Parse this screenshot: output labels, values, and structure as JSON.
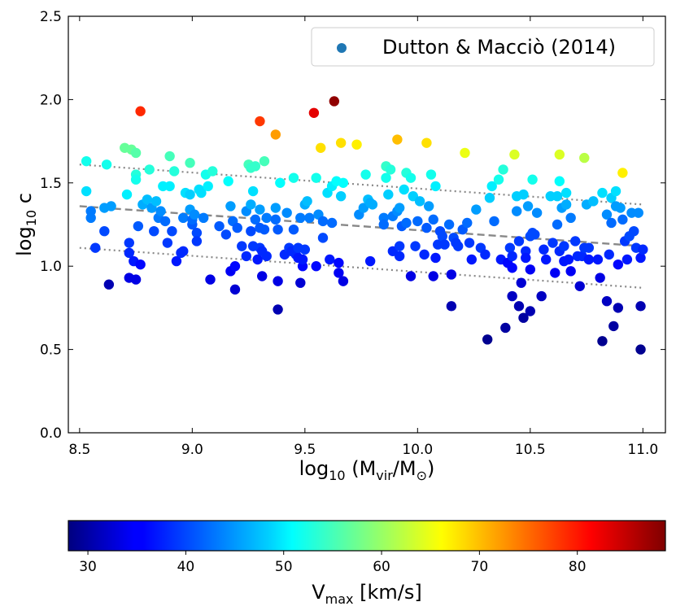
{
  "chart_data": {
    "type": "scatter",
    "xlabel": {
      "base": "log",
      "sub": "10",
      "main": " (M",
      "sub2": "vir",
      "mid": "/M",
      "sub3": "⊙",
      "end": ")"
    },
    "ylabel": {
      "base": "log",
      "sub": "10",
      "end": " c"
    },
    "xlim": [
      8.45,
      11.1
    ],
    "ylim": [
      0.0,
      2.5
    ],
    "xticks": [
      "8.5",
      "9.0",
      "9.5",
      "10.0",
      "10.5",
      "11.0"
    ],
    "yticks": [
      "0.0",
      "0.5",
      "1.0",
      "1.5",
      "2.0",
      "2.5"
    ],
    "legend": {
      "label": "Dutton & Macciò (2014)",
      "position": "top-right",
      "marker_color": "#1f77b4"
    },
    "colorbar": {
      "label_main": "V",
      "label_sub": "max",
      "label_end": " [km/s]",
      "range": [
        28,
        89
      ],
      "ticks": [
        "30",
        "40",
        "50",
        "60",
        "70",
        "80"
      ],
      "colormap": "jet"
    },
    "lines": [
      {
        "name": "",
        "style": "dashed",
        "x": [
          8.5,
          11.0
        ],
        "y": [
          1.36,
          1.12
        ]
      },
      {
        "name": "",
        "style": "dotted",
        "x": [
          8.5,
          11.0
        ],
        "y": [
          1.61,
          1.37
        ]
      },
      {
        "name": "",
        "style": "dotted",
        "x": [
          8.5,
          11.0
        ],
        "y": [
          1.11,
          0.87
        ]
      }
    ],
    "points": [
      [
        8.53,
        1.63,
        52
      ],
      [
        8.53,
        1.45,
        49
      ],
      [
        8.55,
        1.33,
        43
      ],
      [
        8.55,
        1.29,
        43
      ],
      [
        8.57,
        1.11,
        39
      ],
      [
        8.61,
        1.35,
        45
      ],
      [
        8.61,
        1.21,
        40
      ],
      [
        8.62,
        1.61,
        52
      ],
      [
        8.63,
        0.89,
        31
      ],
      [
        8.64,
        1.36,
        45
      ],
      [
        8.7,
        1.71,
        57
      ],
      [
        8.71,
        1.43,
        50
      ],
      [
        8.72,
        1.14,
        39
      ],
      [
        8.72,
        1.08,
        38
      ],
      [
        8.72,
        0.93,
        34
      ],
      [
        8.73,
        1.7,
        57
      ],
      [
        8.74,
        1.03,
        37
      ],
      [
        8.75,
        1.55,
        53
      ],
      [
        8.75,
        1.68,
        56
      ],
      [
        8.75,
        1.52,
        52
      ],
      [
        8.75,
        0.92,
        34
      ],
      [
        8.76,
        1.24,
        41
      ],
      [
        8.77,
        1.93,
        79
      ],
      [
        8.77,
        1.01,
        36
      ],
      [
        8.78,
        1.37,
        46
      ],
      [
        8.8,
        1.4,
        47
      ],
      [
        8.81,
        1.58,
        53
      ],
      [
        8.82,
        1.35,
        45
      ],
      [
        8.83,
        1.21,
        40
      ],
      [
        8.84,
        1.39,
        47
      ],
      [
        8.85,
        1.29,
        43
      ],
      [
        8.86,
        1.33,
        44
      ],
      [
        8.87,
        1.48,
        50
      ],
      [
        8.88,
        1.27,
        42
      ],
      [
        8.89,
        1.14,
        39
      ],
      [
        8.9,
        1.66,
        55
      ],
      [
        8.9,
        1.48,
        50
      ],
      [
        8.91,
        1.21,
        40
      ],
      [
        8.92,
        1.57,
        53
      ],
      [
        8.93,
        1.03,
        37
      ],
      [
        8.95,
        1.08,
        38
      ],
      [
        8.96,
        1.09,
        38
      ],
      [
        8.96,
        1.29,
        43
      ],
      [
        8.97,
        1.44,
        49
      ],
      [
        8.99,
        1.43,
        48
      ],
      [
        8.99,
        1.62,
        55
      ],
      [
        8.99,
        1.34,
        45
      ],
      [
        9.0,
        1.25,
        41
      ],
      [
        9.0,
        1.28,
        42
      ],
      [
        9.01,
        1.31,
        44
      ],
      [
        9.02,
        1.2,
        40
      ],
      [
        9.02,
        1.15,
        39
      ],
      [
        9.03,
        1.46,
        49
      ],
      [
        9.04,
        1.44,
        49
      ],
      [
        9.05,
        1.29,
        43
      ],
      [
        9.06,
        1.55,
        52
      ],
      [
        9.07,
        1.48,
        50
      ],
      [
        9.08,
        0.92,
        34
      ],
      [
        9.09,
        1.57,
        53
      ],
      [
        9.12,
        1.24,
        41
      ],
      [
        9.15,
        1.19,
        40
      ],
      [
        9.16,
        1.51,
        51
      ],
      [
        9.17,
        1.36,
        45
      ],
      [
        9.17,
        0.97,
        35
      ],
      [
        9.18,
        1.27,
        42
      ],
      [
        9.19,
        1.0,
        36
      ],
      [
        9.19,
        0.86,
        33
      ],
      [
        9.2,
        1.23,
        41
      ],
      [
        9.22,
        1.12,
        39
      ],
      [
        9.24,
        1.06,
        38
      ],
      [
        9.24,
        1.33,
        44
      ],
      [
        9.25,
        1.61,
        55
      ],
      [
        9.26,
        1.37,
        46
      ],
      [
        9.26,
        1.21,
        40
      ],
      [
        9.26,
        1.59,
        54
      ],
      [
        9.27,
        1.45,
        49
      ],
      [
        9.27,
        1.12,
        39
      ],
      [
        9.28,
        1.28,
        42
      ],
      [
        9.28,
        1.6,
        54
      ],
      [
        9.29,
        1.04,
        37
      ],
      [
        9.3,
        1.87,
        78
      ],
      [
        9.3,
        1.11,
        39
      ],
      [
        9.3,
        1.23,
        41
      ],
      [
        9.3,
        1.34,
        45
      ],
      [
        9.31,
        0.94,
        34
      ],
      [
        9.31,
        1.09,
        38
      ],
      [
        9.32,
        1.63,
        55
      ],
      [
        9.32,
        1.22,
        41
      ],
      [
        9.33,
        1.06,
        38
      ],
      [
        9.33,
        1.29,
        43
      ],
      [
        9.37,
        1.79,
        72
      ],
      [
        9.37,
        1.28,
        42
      ],
      [
        9.37,
        1.35,
        45
      ],
      [
        9.38,
        0.91,
        34
      ],
      [
        9.38,
        1.22,
        41
      ],
      [
        9.38,
        0.74,
        31
      ],
      [
        9.39,
        1.5,
        51
      ],
      [
        9.41,
        1.07,
        38
      ],
      [
        9.42,
        1.32,
        44
      ],
      [
        9.43,
        1.11,
        39
      ],
      [
        9.44,
        1.09,
        38
      ],
      [
        9.45,
        1.53,
        52
      ],
      [
        9.45,
        1.22,
        41
      ],
      [
        9.46,
        1.07,
        38
      ],
      [
        9.47,
        1.05,
        37
      ],
      [
        9.47,
        1.11,
        39
      ],
      [
        9.48,
        0.9,
        33
      ],
      [
        9.48,
        1.29,
        43
      ],
      [
        9.49,
        1.0,
        36
      ],
      [
        9.49,
        1.04,
        37
      ],
      [
        9.5,
        1.37,
        46
      ],
      [
        9.5,
        1.1,
        39
      ],
      [
        9.51,
        1.39,
        47
      ],
      [
        9.52,
        1.29,
        43
      ],
      [
        9.54,
        1.92,
        83
      ],
      [
        9.55,
        1.0,
        36
      ],
      [
        9.55,
        1.53,
        52
      ],
      [
        9.56,
        1.31,
        44
      ],
      [
        9.57,
        1.71,
        68
      ],
      [
        9.58,
        1.27,
        42
      ],
      [
        9.58,
        1.17,
        40
      ],
      [
        9.6,
        1.44,
        49
      ],
      [
        9.61,
        1.04,
        37
      ],
      [
        9.62,
        1.26,
        42
      ],
      [
        9.62,
        1.48,
        50
      ],
      [
        9.63,
        1.99,
        88
      ],
      [
        9.64,
        1.51,
        51
      ],
      [
        9.65,
        1.02,
        36
      ],
      [
        9.65,
        0.96,
        35
      ],
      [
        9.66,
        1.74,
        68
      ],
      [
        9.66,
        1.42,
        48
      ],
      [
        9.67,
        1.5,
        51
      ],
      [
        9.67,
        0.91,
        34
      ],
      [
        9.73,
        1.73,
        67
      ],
      [
        9.74,
        1.31,
        44
      ],
      [
        9.76,
        1.35,
        45
      ],
      [
        9.77,
        1.55,
        52
      ],
      [
        9.78,
        1.4,
        47
      ],
      [
        9.79,
        1.03,
        37
      ],
      [
        9.79,
        1.38,
        46
      ],
      [
        9.8,
        1.37,
        46
      ],
      [
        9.85,
        1.29,
        43
      ],
      [
        9.85,
        1.25,
        42
      ],
      [
        9.86,
        1.53,
        52
      ],
      [
        9.86,
        1.6,
        54
      ],
      [
        9.87,
        1.43,
        48
      ],
      [
        9.88,
        1.58,
        53
      ],
      [
        9.89,
        1.3,
        43
      ],
      [
        9.89,
        1.09,
        38
      ],
      [
        9.91,
        1.76,
        70
      ],
      [
        9.91,
        1.33,
        44
      ],
      [
        9.92,
        1.12,
        39
      ],
      [
        9.92,
        1.35,
        45
      ],
      [
        9.92,
        1.06,
        38
      ],
      [
        9.93,
        1.24,
        41
      ],
      [
        9.94,
        1.46,
        49
      ],
      [
        9.95,
        1.56,
        53
      ],
      [
        9.95,
        1.26,
        42
      ],
      [
        9.97,
        1.53,
        52
      ],
      [
        9.97,
        0.94,
        34
      ],
      [
        9.98,
        1.42,
        48
      ],
      [
        9.99,
        1.12,
        39
      ],
      [
        10.0,
        1.27,
        42
      ],
      [
        10.01,
        1.39,
        47
      ],
      [
        10.03,
        1.07,
        38
      ],
      [
        10.04,
        1.74,
        68
      ],
      [
        10.04,
        1.23,
        41
      ],
      [
        10.05,
        1.36,
        45
      ],
      [
        10.06,
        1.55,
        52
      ],
      [
        10.07,
        0.94,
        34
      ],
      [
        10.07,
        1.28,
        42
      ],
      [
        10.08,
        1.05,
        37
      ],
      [
        10.08,
        1.48,
        50
      ],
      [
        10.09,
        1.13,
        39
      ],
      [
        10.1,
        1.21,
        40
      ],
      [
        10.11,
        1.18,
        40
      ],
      [
        10.12,
        1.13,
        39
      ],
      [
        10.14,
        1.25,
        42
      ],
      [
        10.15,
        0.76,
        31
      ],
      [
        10.15,
        0.95,
        34
      ],
      [
        10.16,
        1.17,
        40
      ],
      [
        10.17,
        1.14,
        39
      ],
      [
        10.18,
        1.12,
        39
      ],
      [
        10.2,
        1.22,
        41
      ],
      [
        10.21,
        1.68,
        65
      ],
      [
        10.22,
        1.26,
        42
      ],
      [
        10.23,
        1.14,
        39
      ],
      [
        10.24,
        1.04,
        37
      ],
      [
        10.26,
        1.34,
        45
      ],
      [
        10.28,
        1.11,
        39
      ],
      [
        10.3,
        1.07,
        38
      ],
      [
        10.31,
        0.56,
        29
      ],
      [
        10.32,
        1.41,
        48
      ],
      [
        10.33,
        1.48,
        50
      ],
      [
        10.34,
        1.27,
        42
      ],
      [
        10.36,
        1.52,
        52
      ],
      [
        10.37,
        1.04,
        37
      ],
      [
        10.38,
        1.58,
        53
      ],
      [
        10.39,
        0.63,
        30
      ],
      [
        10.4,
        1.02,
        36
      ],
      [
        10.41,
        1.11,
        39
      ],
      [
        10.42,
        1.06,
        38
      ],
      [
        10.42,
        0.99,
        36
      ],
      [
        10.42,
        0.82,
        32
      ],
      [
        10.43,
        1.67,
        64
      ],
      [
        10.44,
        1.42,
        48
      ],
      [
        10.44,
        1.33,
        44
      ],
      [
        10.45,
        0.76,
        31
      ],
      [
        10.45,
        1.15,
        39
      ],
      [
        10.46,
        0.9,
        33
      ],
      [
        10.47,
        0.69,
        30
      ],
      [
        10.47,
        1.43,
        48
      ],
      [
        10.48,
        1.09,
        38
      ],
      [
        10.48,
        1.05,
        37
      ],
      [
        10.49,
        1.36,
        45
      ],
      [
        10.5,
        0.98,
        35
      ],
      [
        10.5,
        1.18,
        40
      ],
      [
        10.5,
        0.73,
        31
      ],
      [
        10.51,
        1.52,
        52
      ],
      [
        10.51,
        1.2,
        40
      ],
      [
        10.52,
        1.19,
        40
      ],
      [
        10.53,
        1.32,
        44
      ],
      [
        10.55,
        0.82,
        32
      ],
      [
        10.56,
        1.1,
        38
      ],
      [
        10.57,
        1.04,
        37
      ],
      [
        10.59,
        1.42,
        48
      ],
      [
        10.6,
        1.14,
        39
      ],
      [
        10.61,
        0.96,
        35
      ],
      [
        10.62,
        1.42,
        48
      ],
      [
        10.62,
        1.25,
        42
      ],
      [
        10.63,
        1.51,
        51
      ],
      [
        10.63,
        1.67,
        64
      ],
      [
        10.63,
        1.09,
        38
      ],
      [
        10.64,
        1.35,
        45
      ],
      [
        10.65,
        1.12,
        39
      ],
      [
        10.65,
        1.03,
        37
      ],
      [
        10.66,
        1.37,
        46
      ],
      [
        10.66,
        1.44,
        49
      ],
      [
        10.67,
        1.04,
        37
      ],
      [
        10.68,
        0.97,
        35
      ],
      [
        10.68,
        1.29,
        43
      ],
      [
        10.7,
        1.15,
        39
      ],
      [
        10.71,
        1.06,
        38
      ],
      [
        10.72,
        0.88,
        33
      ],
      [
        10.73,
        1.06,
        38
      ],
      [
        10.74,
        1.65,
        62
      ],
      [
        10.74,
        1.11,
        39
      ],
      [
        10.75,
        1.37,
        46
      ],
      [
        10.76,
        1.11,
        39
      ],
      [
        10.76,
        1.04,
        37
      ],
      [
        10.78,
        1.39,
        47
      ],
      [
        10.8,
        1.04,
        37
      ],
      [
        10.81,
        0.93,
        34
      ],
      [
        10.82,
        0.55,
        29
      ],
      [
        10.82,
        1.44,
        49
      ],
      [
        10.84,
        0.79,
        32
      ],
      [
        10.84,
        1.31,
        44
      ],
      [
        10.85,
        1.07,
        38
      ],
      [
        10.86,
        1.41,
        48
      ],
      [
        10.86,
        1.26,
        42
      ],
      [
        10.87,
        0.64,
        30
      ],
      [
        10.88,
        1.36,
        45
      ],
      [
        10.88,
        1.45,
        49
      ],
      [
        10.89,
        1.01,
        36
      ],
      [
        10.89,
        0.75,
        31
      ],
      [
        10.9,
        1.35,
        45
      ],
      [
        10.91,
        1.56,
        67
      ],
      [
        10.91,
        1.28,
        42
      ],
      [
        10.92,
        1.15,
        39
      ],
      [
        10.93,
        1.04,
        37
      ],
      [
        10.94,
        1.18,
        40
      ],
      [
        10.95,
        1.32,
        44
      ],
      [
        10.96,
        1.21,
        40
      ],
      [
        10.97,
        1.11,
        39
      ],
      [
        10.98,
        1.32,
        44
      ],
      [
        10.99,
        1.05,
        37
      ],
      [
        10.99,
        0.5,
        29
      ],
      [
        10.99,
        0.76,
        31
      ],
      [
        11.0,
        1.1,
        38
      ]
    ]
  }
}
